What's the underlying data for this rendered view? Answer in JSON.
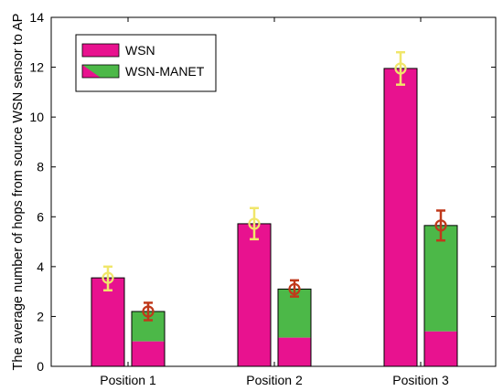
{
  "chart_data": {
    "type": "bar",
    "categories": [
      "Position 1",
      "Position 2",
      "Position 3"
    ],
    "ylabel": "The average number of hops from source WSN sensor to AP",
    "xlabel": "",
    "ylim": [
      0,
      14
    ],
    "yticks": [
      0,
      2,
      4,
      6,
      8,
      10,
      12,
      14
    ],
    "grid": false,
    "legend_position": "top-left",
    "series": [
      {
        "name": "WSN",
        "values": [
          3.55,
          5.72,
          11.95
        ],
        "error_low": [
          3.05,
          5.1,
          11.3
        ],
        "error_high": [
          4.0,
          6.35,
          12.6
        ],
        "color": "#e8128f",
        "error_color": "#f0e66a"
      },
      {
        "name": "WSN-MANET",
        "values": [
          2.2,
          3.1,
          5.65
        ],
        "wsn_portion": [
          1.0,
          1.15,
          1.4
        ],
        "error_low": [
          1.85,
          2.8,
          5.05
        ],
        "error_high": [
          2.55,
          3.45,
          6.25
        ],
        "color": "#4cb848",
        "wsn_color": "#e8128f",
        "error_color": "#c0391b"
      }
    ]
  }
}
